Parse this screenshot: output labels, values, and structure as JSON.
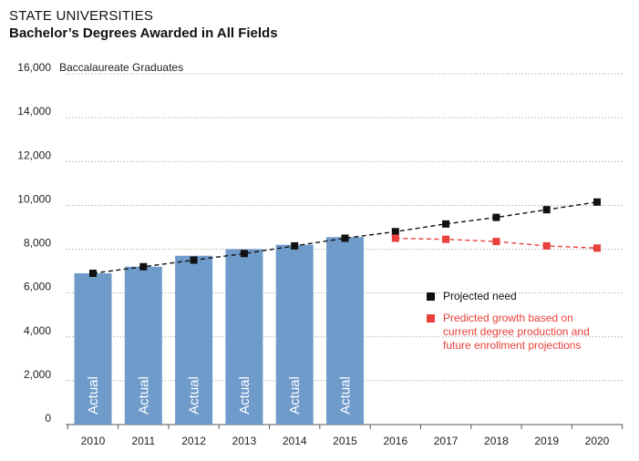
{
  "chart_data": {
    "type": "bar",
    "title": "STATE UNIVERSITIES",
    "subtitle": "Bachelor’s Degrees Awarded in All Fields",
    "ylabel": "Baccalaureate Graduates",
    "xlabel": "",
    "ylim": [
      0,
      16000
    ],
    "yticks": [
      0,
      2000,
      4000,
      6000,
      8000,
      10000,
      12000,
      14000,
      16000
    ],
    "ytick_labels": [
      "0",
      "2,000",
      "4,000",
      "6,000",
      "8,000",
      "10,000",
      "12,000",
      "14,000",
      "16,000"
    ],
    "categories": [
      "2010",
      "2011",
      "2012",
      "2013",
      "2014",
      "2015",
      "2016",
      "2017",
      "2018",
      "2019",
      "2020"
    ],
    "grid": true,
    "bars": {
      "label": "Actual",
      "color": "#6f9bcb",
      "values": [
        6900,
        7200,
        7700,
        8000,
        8200,
        8550
      ]
    },
    "series": [
      {
        "name": "Projected need",
        "type": "line",
        "style": "dashed",
        "color": "#111111",
        "marker": "square",
        "values": [
          6900,
          7200,
          7500,
          7800,
          8150,
          8500,
          8800,
          9150,
          9450,
          9800,
          10150
        ]
      },
      {
        "name": "Predicted growth based on current degree production and future enrollment projections",
        "type": "line",
        "style": "dashed",
        "color": "#e8403a",
        "marker": "square",
        "x": [
          "2016",
          "2017",
          "2018",
          "2019",
          "2020"
        ],
        "values": [
          8500,
          8450,
          8350,
          8150,
          8050
        ]
      }
    ],
    "legend": {
      "placement": "right-middle",
      "items": [
        {
          "label": "Projected need",
          "color": "#111111"
        },
        {
          "label": "Predicted growth based on current degree production and future enrollment projections",
          "color": "#e8403a",
          "lines": [
            "Predicted growth based on",
            "current degree production and",
            "future enrollment projections"
          ]
        }
      ]
    }
  }
}
